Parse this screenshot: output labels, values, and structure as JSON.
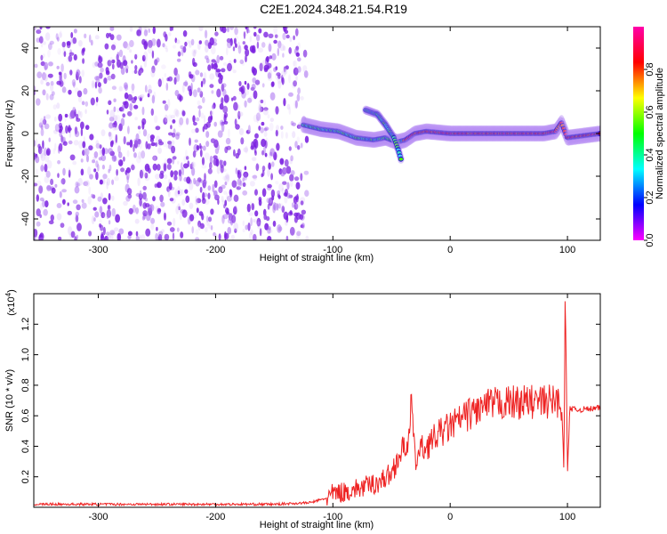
{
  "title": "C2E1.2024.348.21.54.R19",
  "colors": {
    "snr_line": "#ee2222",
    "noise": "#8a2be2",
    "background": "#ffffff"
  },
  "colormap": [
    "#ff00ff",
    "#0000ff",
    "#00ffff",
    "#00ff00",
    "#ffff00",
    "#ff0000",
    "#ff00aa"
  ],
  "chart_data": [
    {
      "type": "heatmap",
      "title": "C2E1.2024.348.21.54.R19",
      "xlabel": "Height of straight line (km)",
      "ylabel": "Frequency (Hz)",
      "xlim": [
        -355,
        128
      ],
      "ylim": [
        -50,
        50
      ],
      "x_ticks": [
        -300,
        -200,
        -100,
        0,
        100
      ],
      "y_ticks": [
        -40,
        -20,
        0,
        20,
        40
      ],
      "colorbar": {
        "label": "Normalized spectral amplitude",
        "range": [
          0,
          1
        ],
        "ticks": [
          0.0,
          0.2,
          0.4,
          0.6,
          0.8
        ]
      },
      "noise_region_x": [
        -355,
        -122
      ],
      "signal_track": {
        "x": [
          -125,
          -110,
          -95,
          -80,
          -65,
          -55,
          -45,
          -38,
          -30,
          -20,
          0,
          40,
          80,
          90,
          95,
          100,
          128
        ],
        "y": [
          4,
          2,
          1,
          -2,
          -3,
          -2,
          -4,
          -3,
          0,
          1,
          0,
          0,
          0,
          1,
          5,
          -2,
          0
        ]
      },
      "side_branch": {
        "x": [
          -72,
          -62,
          -55,
          -48,
          -44,
          -42
        ],
        "y": [
          11,
          9,
          4,
          -2,
          -8,
          -12
        ]
      }
    },
    {
      "type": "line",
      "xlabel": "Height of straight line (km)",
      "ylabel": "SNR (10 * v/v)",
      "y_multiplier": "(x10",
      "y_multiplier_exp": "4",
      "xlim": [
        -355,
        128
      ],
      "ylim": [
        0,
        1.4
      ],
      "x_ticks": [
        -300,
        -200,
        -100,
        0,
        100
      ],
      "y_ticks": [
        0.2,
        0.4,
        0.6,
        0.8,
        1.0,
        1.2
      ],
      "series": [
        {
          "x": [
            -355,
            -300,
            -200,
            -150,
            -120,
            -105,
            -100,
            -90,
            -80,
            -70,
            -60,
            -50,
            -45,
            -40,
            -35,
            -33,
            -30,
            -25,
            -20,
            -10,
            0,
            10,
            20,
            30,
            40,
            60,
            80,
            90,
            95,
            97,
            98,
            99,
            100,
            102,
            105,
            110,
            128
          ],
          "y": [
            0.02,
            0.02,
            0.02,
            0.02,
            0.03,
            0.06,
            0.09,
            0.1,
            0.12,
            0.14,
            0.17,
            0.22,
            0.32,
            0.38,
            0.45,
            0.7,
            0.3,
            0.38,
            0.4,
            0.48,
            0.53,
            0.58,
            0.63,
            0.66,
            0.68,
            0.69,
            0.69,
            0.7,
            0.68,
            0.25,
            1.4,
            0.9,
            0.2,
            0.66,
            0.64,
            0.64,
            0.65
          ]
        }
      ]
    }
  ]
}
